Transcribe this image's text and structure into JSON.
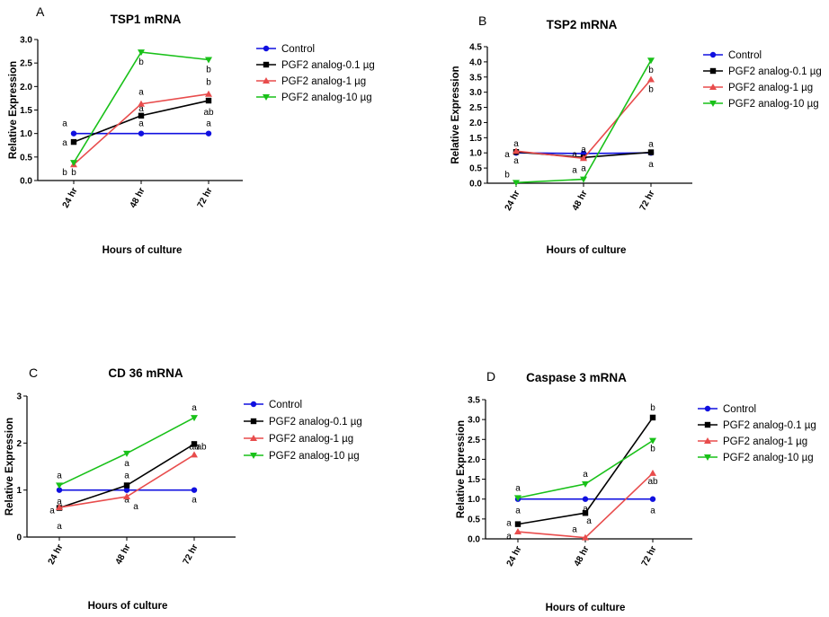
{
  "legend_labels": [
    "Control",
    "PGF2 analog-0.1 µg",
    "PGF2 analog-1 µg",
    "PGF2 analog-10 µg"
  ],
  "series_colors": [
    "#1010e0",
    "#000000",
    "#e84c4c",
    "#19c119"
  ],
  "series_markers": [
    "circle",
    "square",
    "triangle-up",
    "triangle-down"
  ],
  "chart_data": [
    {
      "type": "line",
      "panel_label": "A",
      "title": "TSP1 mRNA",
      "xlabel": "Hours of culture",
      "ylabel": "Relative Expression",
      "categories": [
        "24 hr",
        "48 hr",
        "72 hr"
      ],
      "ylim": [
        0,
        3.0
      ],
      "yticks": [
        "0.0",
        "0.5",
        "1.0",
        "1.5",
        "2.0",
        "2.5",
        "3.0"
      ],
      "legend": "right",
      "series": [
        {
          "name": "Control",
          "values": [
            1.0,
            1.0,
            1.0
          ],
          "letters": [
            "a",
            "a",
            "a"
          ]
        },
        {
          "name": "PGF2 analog-0.1 µg",
          "values": [
            0.82,
            1.38,
            1.7
          ],
          "letters": [
            "a",
            "a",
            "ab"
          ]
        },
        {
          "name": "PGF2 analog-1 µg",
          "values": [
            0.34,
            1.63,
            1.84
          ],
          "letters": [
            "b",
            "a",
            "b"
          ]
        },
        {
          "name": "PGF2 analog-10 µg",
          "values": [
            0.38,
            2.73,
            2.57
          ],
          "letters": [
            "b",
            "b",
            "b"
          ]
        }
      ]
    },
    {
      "type": "line",
      "panel_label": "B",
      "title": "TSP2 mRNA",
      "xlabel": "Hours of culture",
      "ylabel": "Relative Expression",
      "categories": [
        "24 hr",
        "48 hr",
        "72 hr"
      ],
      "ylim": [
        0,
        4.5
      ],
      "yticks": [
        "0.0",
        "0.5",
        "1.0",
        "1.5",
        "2.0",
        "2.5",
        "3.0",
        "3.5",
        "4.0",
        "4.5"
      ],
      "legend": "right",
      "series": [
        {
          "name": "Control",
          "values": [
            1.0,
            0.98,
            1.0
          ],
          "letters": [
            "a",
            "a",
            "a"
          ]
        },
        {
          "name": "PGF2 analog-0.1 µg",
          "values": [
            1.03,
            0.85,
            1.02
          ],
          "letters": [
            "a",
            "a",
            "a"
          ]
        },
        {
          "name": "PGF2 analog-1 µg",
          "values": [
            1.06,
            0.82,
            3.42
          ],
          "letters": [
            "a",
            "a",
            "b"
          ]
        },
        {
          "name": "PGF2 analog-10 µg",
          "values": [
            0.02,
            0.13,
            4.05
          ],
          "letters": [
            "b",
            "a",
            "b"
          ]
        }
      ]
    },
    {
      "type": "line",
      "panel_label": "C",
      "title": "CD 36 mRNA",
      "xlabel": "Hours of culture",
      "ylabel": "Relative Expression",
      "categories": [
        "24 hr",
        "48 hr",
        "72 hr"
      ],
      "ylim": [
        0,
        3
      ],
      "yticks": [
        "0",
        "1",
        "2",
        "3"
      ],
      "legend": "right",
      "series": [
        {
          "name": "Control",
          "values": [
            1.0,
            1.0,
            1.0
          ],
          "letters": [
            "a",
            "a",
            "a"
          ]
        },
        {
          "name": "PGF2 analog-0.1 µg",
          "values": [
            0.62,
            1.1,
            1.98
          ],
          "letters": [
            "a",
            "a",
            "ab"
          ]
        },
        {
          "name": "PGF2 analog-1 µg",
          "values": [
            0.63,
            0.86,
            1.75
          ],
          "letters": [
            "a",
            "a",
            "ab"
          ]
        },
        {
          "name": "PGF2 analog-10 µg",
          "values": [
            1.1,
            1.78,
            2.54
          ],
          "letters": [
            "a",
            "a",
            "a"
          ]
        }
      ]
    },
    {
      "type": "line",
      "panel_label": "D",
      "title": "Caspase 3 mRNA",
      "xlabel": "Hours of culture",
      "ylabel": "Relative Expression",
      "categories": [
        "24 hr",
        "48 hr",
        "72 hr"
      ],
      "ylim": [
        0,
        3.5
      ],
      "yticks": [
        "0.0",
        "0.5",
        "1.0",
        "1.5",
        "2.0",
        "2.5",
        "3.0",
        "3.5"
      ],
      "legend": "right",
      "series": [
        {
          "name": "Control",
          "values": [
            1.0,
            1.0,
            1.0
          ],
          "letters": [
            "a",
            "a",
            "a"
          ]
        },
        {
          "name": "PGF2 analog-0.1 µg",
          "values": [
            0.37,
            0.65,
            3.05
          ],
          "letters": [
            "a",
            "a",
            "b"
          ]
        },
        {
          "name": "PGF2 analog-1 µg",
          "values": [
            0.18,
            0.03,
            1.65
          ],
          "letters": [
            "a",
            "a",
            "ab"
          ]
        },
        {
          "name": "PGF2 analog-10 µg",
          "values": [
            1.03,
            1.38,
            2.47
          ],
          "letters": [
            "a",
            "a",
            "b"
          ]
        }
      ]
    }
  ]
}
